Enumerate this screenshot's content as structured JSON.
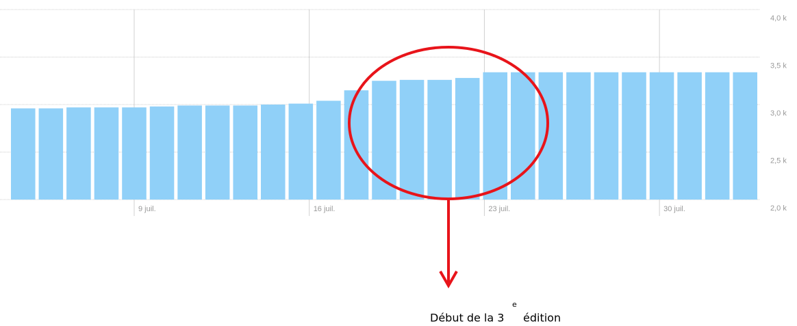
{
  "chart_data": {
    "type": "bar",
    "values": [
      2960,
      2960,
      2970,
      2970,
      2970,
      2980,
      2990,
      2990,
      2990,
      3000,
      3010,
      3040,
      3150,
      3250,
      3260,
      3260,
      3280,
      3340,
      3340,
      3340,
      3340,
      3340,
      3340,
      3340,
      3340,
      3340,
      3340
    ],
    "color": "#90d0f8",
    "ylim": [
      2000,
      4000
    ],
    "yticks": [
      {
        "value": 2000,
        "label": "2,0 k"
      },
      {
        "value": 2500,
        "label": "2,5 k"
      },
      {
        "value": 3000,
        "label": "3,0 k"
      },
      {
        "value": 3500,
        "label": "3,5 k"
      },
      {
        "value": 4000,
        "label": "4,0 k"
      }
    ],
    "x_labels": [
      "9 juil.",
      "16 juil.",
      "23 juil.",
      "30 juil."
    ],
    "annotation": {
      "text": "Début de la 3",
      "superscript": "e",
      "text_after": "édition",
      "color": "#e8141a"
    }
  }
}
